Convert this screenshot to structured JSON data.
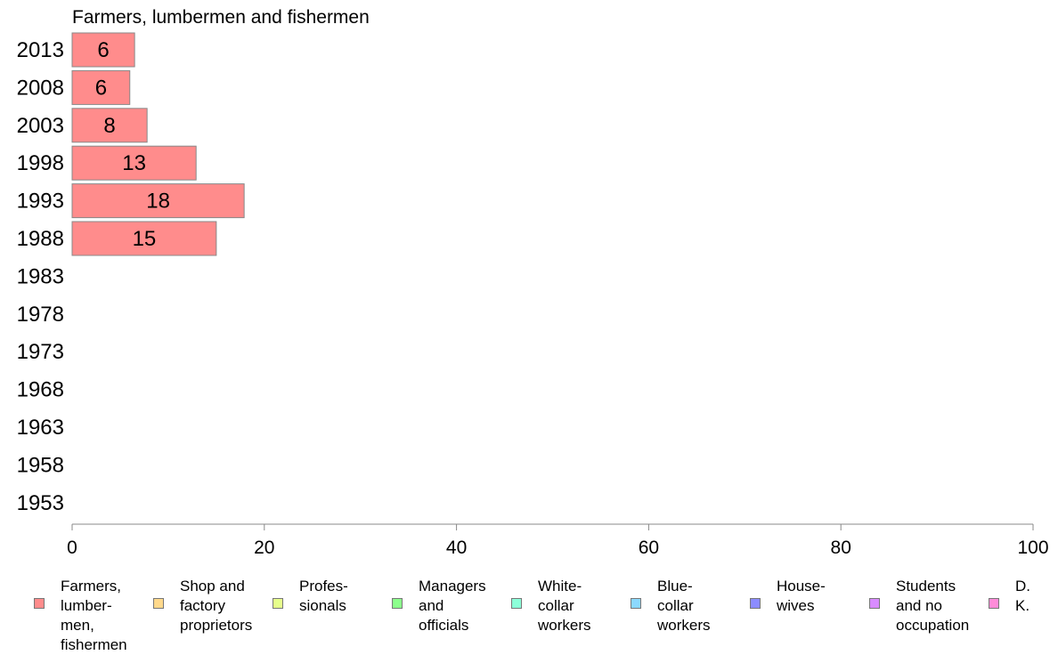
{
  "chart_data": {
    "type": "bar",
    "orientation": "horizontal",
    "title": "Farmers, lumbermen and fishermen",
    "categories": [
      "2013",
      "2008",
      "2003",
      "1998",
      "1993",
      "1988",
      "1983",
      "1978",
      "1973",
      "1968",
      "1963",
      "1958",
      "1953"
    ],
    "series": [
      {
        "name": "Farmers, lumbermen and fishermen",
        "color": "#ff8c8c",
        "values": [
          6.5,
          6,
          7.8,
          12.9,
          17.9,
          15,
          null,
          null,
          null,
          null,
          null,
          null,
          null
        ],
        "labels": [
          "6",
          "6",
          "8",
          "13",
          "18",
          "15",
          "",
          "",
          "",
          "",
          "",
          "",
          ""
        ]
      }
    ],
    "xlim": [
      0,
      100
    ],
    "xticks": [
      "0",
      "20",
      "40",
      "60",
      "80",
      "100"
    ],
    "grid": false,
    "legend_position": "bottom"
  },
  "legend": {
    "items": [
      {
        "label": "Farmers,\nlumber-\nmen,\nfishermen",
        "color": "#ff8c8c"
      },
      {
        "label": "Shop and\nfactory\nproprietors",
        "color": "#ffd98c"
      },
      {
        "label": "Profes-\nsionals",
        "color": "#e6ff8c"
      },
      {
        "label": "Managers\nand\nofficials",
        "color": "#8cff8c"
      },
      {
        "label": "White-\ncollar\nworkers",
        "color": "#8cffd9"
      },
      {
        "label": "Blue-collar\nworkers",
        "color": "#8cd9ff"
      },
      {
        "label": "House-\nwives",
        "color": "#8c8cff"
      },
      {
        "label": "Students\nand no\noccupation",
        "color": "#d98cff"
      },
      {
        "label": "D. K.",
        "color": "#ff8cd9"
      }
    ]
  }
}
